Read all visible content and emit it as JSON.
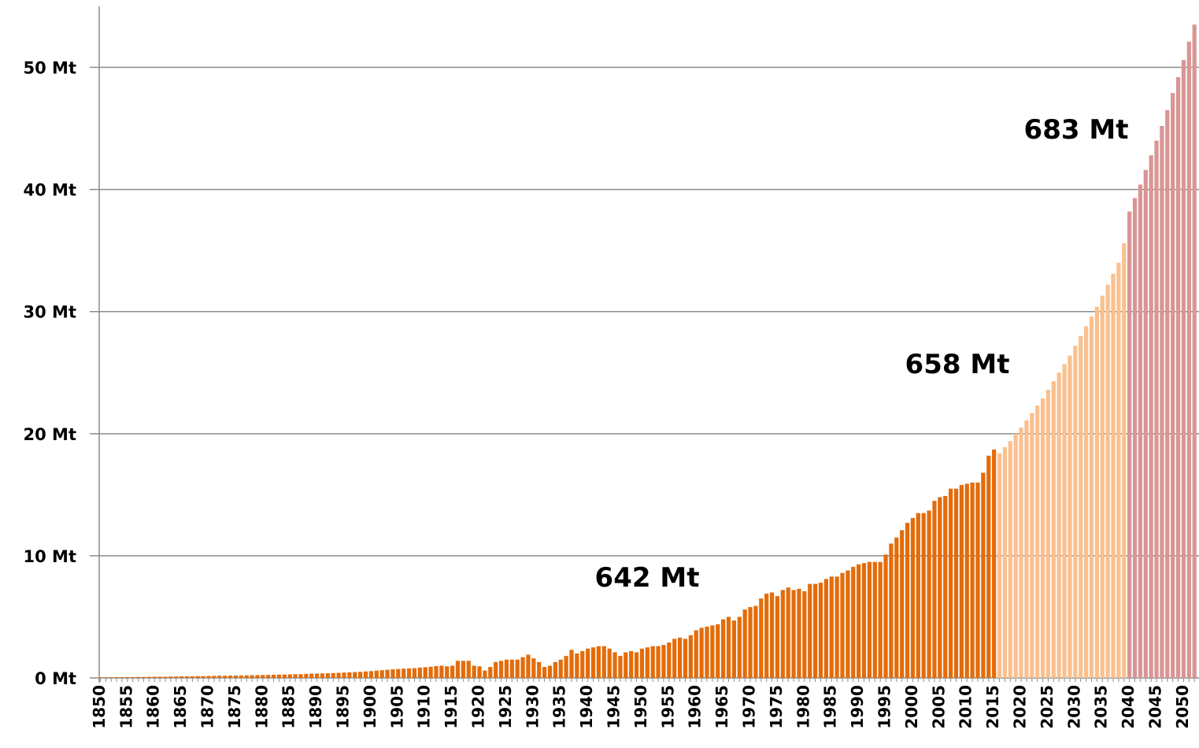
{
  "chart_data": {
    "type": "bar",
    "categories": [
      "1850",
      null,
      null,
      null,
      null,
      "1855",
      null,
      null,
      null,
      null,
      "1860",
      null,
      null,
      null,
      null,
      "1865",
      null,
      null,
      null,
      null,
      "1870",
      null,
      null,
      null,
      null,
      "1875",
      null,
      null,
      null,
      null,
      "1880",
      null,
      null,
      null,
      null,
      "1885",
      null,
      null,
      null,
      null,
      "1890",
      null,
      null,
      null,
      null,
      "1895",
      null,
      null,
      null,
      null,
      "1900",
      null,
      null,
      null,
      null,
      "1905",
      null,
      null,
      null,
      null,
      "1910",
      null,
      null,
      null,
      null,
      "1915",
      null,
      null,
      null,
      null,
      "1920",
      null,
      null,
      null,
      null,
      "1925",
      null,
      null,
      null,
      null,
      "1930",
      null,
      null,
      null,
      null,
      "1935",
      null,
      null,
      null,
      null,
      "1940",
      null,
      null,
      null,
      null,
      "1945",
      null,
      null,
      null,
      null,
      "1950",
      null,
      null,
      null,
      null,
      "1955",
      null,
      null,
      null,
      null,
      "1960",
      null,
      null,
      null,
      null,
      "1965",
      null,
      null,
      null,
      null,
      "1970",
      null,
      null,
      null,
      null,
      "1975",
      null,
      null,
      null,
      null,
      "1980",
      null,
      null,
      null,
      null,
      "1985",
      null,
      null,
      null,
      null,
      "1990",
      null,
      null,
      null,
      null,
      "1995",
      null,
      null,
      null,
      null,
      "2000",
      null,
      null,
      null,
      null,
      "2005",
      null,
      null,
      null,
      null,
      "2010",
      null,
      null,
      null,
      null,
      "2015",
      null,
      null,
      null,
      null,
      "2020",
      null,
      null,
      null,
      null,
      "2025",
      null,
      null,
      null,
      null,
      "2030",
      null,
      null,
      null,
      null,
      "2035",
      null,
      null,
      null,
      null,
      "2040",
      null,
      null,
      null,
      null,
      "2045",
      null,
      null,
      null,
      null,
      "2050",
      null,
      null
    ],
    "series": [
      {
        "color": "#e36c0a",
        "values": [
          0.05,
          0.05,
          0.05,
          0.06,
          0.06,
          0.07,
          0.07,
          0.08,
          0.08,
          0.09,
          0.1,
          0.1,
          0.1,
          0.11,
          0.12,
          0.13,
          0.13,
          0.14,
          0.15,
          0.15,
          0.16,
          0.17,
          0.18,
          0.18,
          0.19,
          0.2,
          0.2,
          0.21,
          0.22,
          0.23,
          0.24,
          0.25,
          0.26,
          0.27,
          0.28,
          0.29,
          0.3,
          0.31,
          0.33,
          0.35,
          0.36,
          0.37,
          0.38,
          0.4,
          0.42,
          0.44,
          0.46,
          0.48,
          0.5,
          0.53,
          0.56,
          0.6,
          0.63,
          0.67,
          0.7,
          0.73,
          0.76,
          0.78,
          0.8,
          0.85,
          0.88,
          0.92,
          0.97,
          1.0,
          0.95,
          1.0,
          1.4,
          1.4,
          1.4,
          1.0,
          0.95,
          0.6,
          0.9,
          1.3,
          1.4,
          1.5,
          1.5,
          1.5,
          1.7,
          1.9,
          1.6,
          1.3,
          0.9,
          1.0,
          1.3,
          1.5,
          1.8,
          2.3,
          2.0,
          2.2,
          2.4,
          2.5,
          2.6,
          2.6,
          2.4,
          2.1,
          1.8,
          2.1,
          2.2,
          2.1,
          2.4,
          2.5,
          2.6,
          2.6,
          2.7,
          2.9,
          3.2,
          3.3,
          3.2,
          3.5,
          3.9,
          4.1,
          4.2,
          4.3,
          4.4,
          4.8,
          5.0,
          4.7,
          5.0,
          5.6,
          5.8,
          5.9,
          6.5,
          6.9,
          7.0,
          6.7,
          7.2,
          7.4,
          7.2,
          7.3,
          7.1,
          7.7,
          7.7,
          7.8,
          8.1,
          8.3,
          8.3,
          8.6,
          8.8,
          9.1,
          9.3,
          9.4,
          9.5,
          9.5,
          9.5,
          10.1,
          11.0,
          11.5,
          12.1,
          12.7,
          13.1,
          13.5,
          13.5,
          13.7,
          14.5,
          14.8,
          14.9,
          15.5,
          15.5,
          15.8,
          15.9,
          16.0,
          16.0,
          16.8,
          18.2,
          18.7,
          null,
          null,
          null,
          null,
          null,
          null,
          null,
          null,
          null,
          null,
          null,
          null,
          null,
          null,
          null,
          null,
          null,
          null,
          null,
          null,
          null,
          null,
          null,
          null,
          null,
          null,
          null,
          null,
          null,
          null,
          null,
          null,
          null,
          null,
          null,
          null,
          null
        ]
      },
      {
        "color": "#fac08f",
        "values": [
          null,
          null,
          null,
          null,
          null,
          null,
          null,
          null,
          null,
          null,
          null,
          null,
          null,
          null,
          null,
          null,
          null,
          null,
          null,
          null,
          null,
          null,
          null,
          null,
          null,
          null,
          null,
          null,
          null,
          null,
          null,
          null,
          null,
          null,
          null,
          null,
          null,
          null,
          null,
          null,
          null,
          null,
          null,
          null,
          null,
          null,
          null,
          null,
          null,
          null,
          null,
          null,
          null,
          null,
          null,
          null,
          null,
          null,
          null,
          null,
          null,
          null,
          null,
          null,
          null,
          null,
          null,
          null,
          null,
          null,
          null,
          null,
          null,
          null,
          null,
          null,
          null,
          null,
          null,
          null,
          null,
          null,
          null,
          null,
          null,
          null,
          null,
          null,
          null,
          null,
          null,
          null,
          null,
          null,
          null,
          null,
          null,
          null,
          null,
          null,
          null,
          null,
          null,
          null,
          null,
          null,
          null,
          null,
          null,
          null,
          null,
          null,
          null,
          null,
          null,
          null,
          null,
          null,
          null,
          null,
          null,
          null,
          null,
          null,
          null,
          null,
          null,
          null,
          null,
          null,
          null,
          null,
          null,
          null,
          null,
          null,
          null,
          null,
          null,
          null,
          null,
          null,
          null,
          null,
          null,
          null,
          null,
          null,
          null,
          null,
          null,
          null,
          null,
          null,
          null,
          null,
          null,
          null,
          null,
          null,
          null,
          null,
          null,
          null,
          null,
          null,
          18.4,
          18.9,
          19.4,
          20.0,
          20.5,
          21.1,
          21.7,
          22.3,
          22.9,
          23.6,
          24.3,
          25.0,
          25.7,
          26.4,
          27.2,
          28.0,
          28.8,
          29.6,
          30.4,
          31.3,
          32.2,
          33.1,
          34.0,
          35.6,
          null,
          null,
          null,
          null,
          null,
          null,
          null,
          null,
          null,
          null,
          null,
          null,
          null
        ]
      },
      {
        "color": "#d99594",
        "values": [
          null,
          null,
          null,
          null,
          null,
          null,
          null,
          null,
          null,
          null,
          null,
          null,
          null,
          null,
          null,
          null,
          null,
          null,
          null,
          null,
          null,
          null,
          null,
          null,
          null,
          null,
          null,
          null,
          null,
          null,
          null,
          null,
          null,
          null,
          null,
          null,
          null,
          null,
          null,
          null,
          null,
          null,
          null,
          null,
          null,
          null,
          null,
          null,
          null,
          null,
          null,
          null,
          null,
          null,
          null,
          null,
          null,
          null,
          null,
          null,
          null,
          null,
          null,
          null,
          null,
          null,
          null,
          null,
          null,
          null,
          null,
          null,
          null,
          null,
          null,
          null,
          null,
          null,
          null,
          null,
          null,
          null,
          null,
          null,
          null,
          null,
          null,
          null,
          null,
          null,
          null,
          null,
          null,
          null,
          null,
          null,
          null,
          null,
          null,
          null,
          null,
          null,
          null,
          null,
          null,
          null,
          null,
          null,
          null,
          null,
          null,
          null,
          null,
          null,
          null,
          null,
          null,
          null,
          null,
          null,
          null,
          null,
          null,
          null,
          null,
          null,
          null,
          null,
          null,
          null,
          null,
          null,
          null,
          null,
          null,
          null,
          null,
          null,
          null,
          null,
          null,
          null,
          null,
          null,
          null,
          null,
          null,
          null,
          null,
          null,
          null,
          null,
          null,
          null,
          null,
          null,
          null,
          null,
          null,
          null,
          null,
          null,
          null,
          null,
          null,
          null,
          null,
          null,
          null,
          null,
          null,
          null,
          null,
          null,
          null,
          null,
          null,
          null,
          null,
          null,
          null,
          null,
          null,
          null,
          null,
          null,
          null,
          null,
          null,
          null,
          38.2,
          39.3,
          40.4,
          41.6,
          42.8,
          44.0,
          45.2,
          46.5,
          47.9,
          49.2,
          50.6,
          52.1,
          53.5
        ]
      }
    ],
    "annotations": [
      "642 Mt",
      "658 Mt",
      "683 Mt"
    ],
    "ylim": [
      0,
      55
    ],
    "yticks": [
      {
        "value": 0,
        "label": "0 Mt"
      },
      {
        "value": 10,
        "label": "10 Mt"
      },
      {
        "value": 20,
        "label": "20 Mt"
      },
      {
        "value": 30,
        "label": "30 Mt"
      },
      {
        "value": 40,
        "label": "40 Mt"
      },
      {
        "value": 50,
        "label": "50 Mt"
      }
    ],
    "grid": true
  }
}
